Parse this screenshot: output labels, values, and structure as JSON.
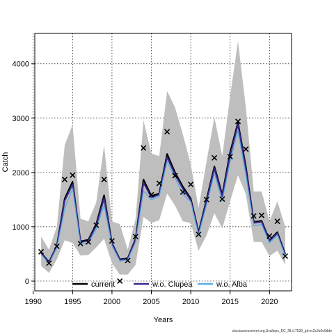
{
  "chart_data": {
    "type": "line",
    "title": "",
    "xlabel": "Years",
    "ylabel": "Catch",
    "xlim": [
      1990.2,
      2022.8
    ],
    "ylim": [
      -180,
      4560
    ],
    "xticks": [
      1990,
      1995,
      2000,
      2005,
      2010,
      2015,
      2020
    ],
    "yticks": [
      0,
      1000,
      2000,
      3000,
      4000
    ],
    "grid": true,
    "legend_position": "bottom",
    "x": [
      1991,
      1992,
      1993,
      1994,
      1995,
      1996,
      1997,
      1998,
      1999,
      2000,
      2001,
      2002,
      2003,
      2004,
      2005,
      2006,
      2007,
      2008,
      2009,
      2010,
      2011,
      2012,
      2013,
      2014,
      2015,
      2016,
      2017,
      2018,
      2019,
      2020,
      2021,
      2022
    ],
    "band": {
      "upper": [
        820,
        580,
        1000,
        2500,
        2880,
        1150,
        1100,
        1450,
        2500,
        1100,
        1050,
        580,
        1150,
        2960,
        2350,
        2300,
        3500,
        3200,
        2700,
        2150,
        1350,
        2200,
        3020,
        2300,
        3400,
        4420,
        3200,
        1650,
        1650,
        1100,
        1470,
        1000
      ],
      "lower": [
        280,
        150,
        400,
        750,
        700,
        470,
        480,
        620,
        780,
        330,
        120,
        120,
        300,
        1180,
        1070,
        1120,
        1610,
        1390,
        1100,
        1070,
        560,
        840,
        1250,
        970,
        1470,
        1950,
        1600,
        720,
        720,
        460,
        560,
        300
      ]
    },
    "series": [
      {
        "name": "current",
        "color": "#000000",
        "values": [
          520,
          350,
          650,
          1520,
          1830,
          730,
          760,
          1050,
          1580,
          700,
          400,
          420,
          780,
          1870,
          1570,
          1610,
          2340,
          2000,
          1740,
          1520,
          900,
          1500,
          2110,
          1590,
          2370,
          2920,
          2110,
          1090,
          1110,
          750,
          900,
          500
        ]
      },
      {
        "name": "w.o. Clupea",
        "color": "#3a2a8c",
        "values": [
          510,
          340,
          640,
          1480,
          1780,
          720,
          740,
          1020,
          1520,
          690,
          390,
          410,
          760,
          1810,
          1540,
          1590,
          2280,
          1960,
          1700,
          1490,
          880,
          1470,
          2070,
          1560,
          2310,
          2880,
          2060,
          1070,
          1090,
          740,
          880,
          490
        ]
      },
      {
        "name": "w.o. Alba",
        "color": "#5aaae6",
        "values": [
          490,
          320,
          610,
          1330,
          1700,
          680,
          700,
          960,
          1400,
          650,
          370,
          390,
          720,
          1660,
          1500,
          1560,
          2200,
          1900,
          1600,
          1460,
          850,
          1400,
          1980,
          1480,
          2200,
          2760,
          1960,
          1020,
          1040,
          700,
          850,
          460
        ]
      }
    ],
    "observed": {
      "marker": "x",
      "values": [
        540,
        330,
        640,
        1870,
        1950,
        690,
        720,
        1030,
        1870,
        740,
        0,
        380,
        820,
        2450,
        1590,
        1800,
        2750,
        1940,
        1640,
        1780,
        860,
        1500,
        2270,
        1510,
        2290,
        2940,
        2430,
        1200,
        1210,
        830,
        1100,
        460
      ]
    }
  },
  "footer_text": "stockassessment.org,Scallops_EC_fill,r17539_git:ec2c2a0c6dde",
  "band_color": "#bebebe",
  "grid_color": "#000000"
}
